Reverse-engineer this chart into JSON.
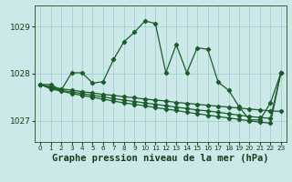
{
  "title": "Graphe pression niveau de la mer (hPa)",
  "bg_color": "#cce8e8",
  "grid_color": "#99cccc",
  "line_color": "#1a5c2a",
  "xlim": [
    -0.5,
    23.5
  ],
  "ylim": [
    1026.55,
    1029.45
  ],
  "yticks": [
    1027,
    1028,
    1029
  ],
  "xticks": [
    0,
    1,
    2,
    3,
    4,
    5,
    6,
    7,
    8,
    9,
    10,
    11,
    12,
    13,
    14,
    15,
    16,
    17,
    18,
    19,
    20,
    21,
    22,
    23
  ],
  "line_main": [
    1027.77,
    1027.77,
    1027.65,
    1028.02,
    1028.02,
    1027.8,
    1027.83,
    1028.3,
    1028.68,
    1028.88,
    1029.12,
    1029.07,
    1028.02,
    1028.62,
    1028.02,
    1028.55,
    1028.52,
    1027.82,
    1027.65,
    1027.3,
    1027.02,
    1027.02,
    1027.38,
    1028.02
  ],
  "line_a": [
    1027.77,
    1027.72,
    1027.68,
    1027.65,
    1027.62,
    1027.59,
    1027.56,
    1027.54,
    1027.51,
    1027.49,
    1027.46,
    1027.44,
    1027.42,
    1027.39,
    1027.37,
    1027.35,
    1027.33,
    1027.31,
    1027.29,
    1027.27,
    1027.25,
    1027.23,
    1027.21,
    1027.2
  ],
  "line_b": [
    1027.77,
    1027.7,
    1027.65,
    1027.61,
    1027.58,
    1027.54,
    1027.51,
    1027.47,
    1027.44,
    1027.41,
    1027.38,
    1027.35,
    1027.32,
    1027.29,
    1027.26,
    1027.23,
    1027.21,
    1027.18,
    1027.15,
    1027.12,
    1027.09,
    1027.07,
    1027.05,
    1028.02
  ],
  "line_c": [
    1027.77,
    1027.68,
    1027.63,
    1027.58,
    1027.54,
    1027.5,
    1027.46,
    1027.42,
    1027.38,
    1027.35,
    1027.32,
    1027.28,
    1027.25,
    1027.22,
    1027.18,
    1027.15,
    1027.12,
    1027.09,
    1027.06,
    1027.03,
    1027.0,
    1026.97,
    1026.95,
    1028.02
  ],
  "tick_fontsize": 6,
  "label_fontsize": 7.5
}
